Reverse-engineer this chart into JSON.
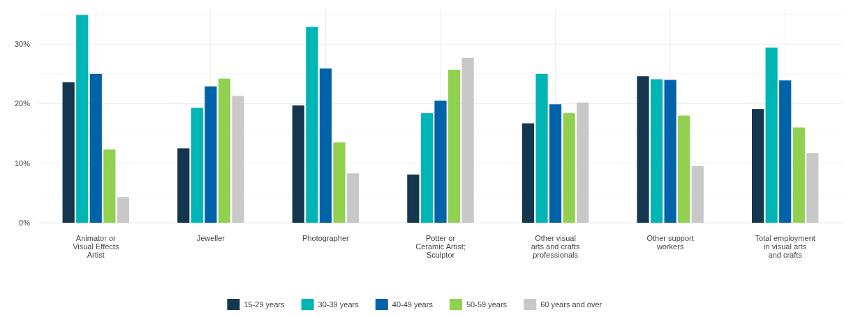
{
  "chart_data": {
    "type": "bar",
    "categories": [
      "Animator or Visual Effects Artist",
      "Jeweller",
      "Photographer",
      "Potter or Ceramic Artist; Sculptor",
      "Other visual arts and crafts professionals",
      "Other support workers",
      "Total employment in visual arts and crafts"
    ],
    "series": [
      {
        "name": "15-29 years",
        "color": "#14374f",
        "values": [
          23.6,
          12.5,
          19.7,
          8.1,
          16.7,
          24.6,
          19.1
        ]
      },
      {
        "name": "30-39 years",
        "color": "#00b5b5",
        "values": [
          34.9,
          19.3,
          32.9,
          18.4,
          25.0,
          24.1,
          29.4
        ]
      },
      {
        "name": "40-49 years",
        "color": "#0063a9",
        "values": [
          25.0,
          22.9,
          25.9,
          20.5,
          19.9,
          24.0,
          23.9
        ]
      },
      {
        "name": "50-59 years",
        "color": "#92d050",
        "values": [
          12.3,
          24.2,
          13.5,
          25.7,
          18.4,
          18.0,
          16.0
        ]
      },
      {
        "name": "60 years and over",
        "color": "#c8c8c8",
        "values": [
          4.3,
          21.3,
          8.3,
          27.7,
          20.2,
          9.5,
          11.7
        ]
      }
    ],
    "ylim": [
      0,
      36
    ],
    "yticks": [
      {
        "value": 0,
        "label": "0%"
      },
      {
        "value": 10,
        "label": "10%"
      },
      {
        "value": 20,
        "label": "20%"
      },
      {
        "value": 30,
        "label": "30%"
      }
    ],
    "grid": true,
    "legend": "bottom"
  }
}
